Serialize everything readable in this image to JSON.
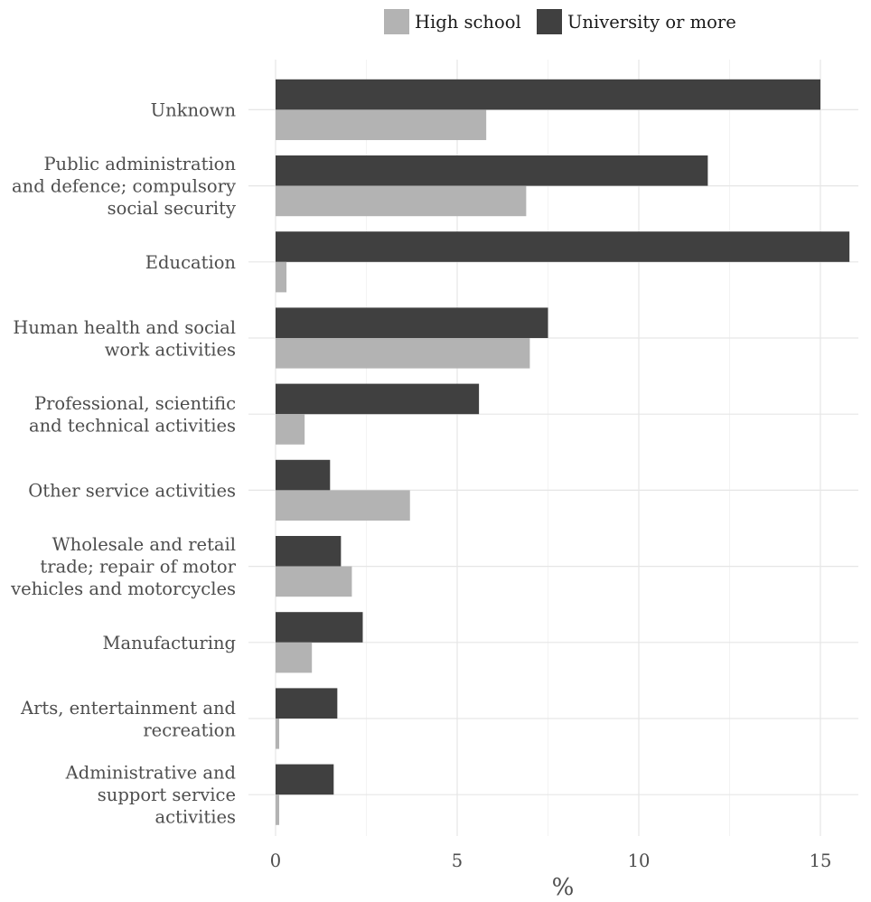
{
  "chart_data": {
    "type": "bar",
    "orientation": "horizontal",
    "categories": [
      "Unknown",
      "Public administration and defence; compulsory social security",
      "Education",
      "Human health and social work activities",
      "Professional, scientific and technical activities",
      "Other service activities",
      "Wholesale and retail trade; repair of motor vehicles and motorcycles",
      "Manufacturing",
      "Arts, entertainment and recreation",
      "Administrative and support service activities"
    ],
    "category_lines": [
      [
        "Unknown"
      ],
      [
        "Public administration",
        "and defence; compulsory",
        "social security"
      ],
      [
        "Education"
      ],
      [
        "Human health and social",
        "work activities"
      ],
      [
        "Professional, scientific",
        "and technical activities"
      ],
      [
        "Other service activities"
      ],
      [
        "Wholesale and retail",
        "trade; repair of motor",
        "vehicles and motorcycles"
      ],
      [
        "Manufacturing"
      ],
      [
        "Arts, entertainment and",
        "recreation"
      ],
      [
        "Administrative and",
        "support service",
        "activities"
      ]
    ],
    "series": [
      {
        "name": "High school",
        "color": "#b3b3b3",
        "values": [
          5.8,
          6.9,
          0.3,
          7.0,
          0.8,
          3.7,
          2.1,
          1.0,
          0.1,
          0.1
        ]
      },
      {
        "name": "University or more",
        "color": "#404040",
        "values": [
          15.0,
          11.9,
          15.8,
          7.5,
          5.6,
          1.5,
          1.8,
          2.4,
          1.7,
          1.6
        ]
      }
    ],
    "xlabel": "%",
    "ylabel": "",
    "xlim": [
      0,
      15.8
    ],
    "xticks": [
      0,
      5,
      10,
      15
    ],
    "grid": true,
    "legend_position": "top"
  }
}
